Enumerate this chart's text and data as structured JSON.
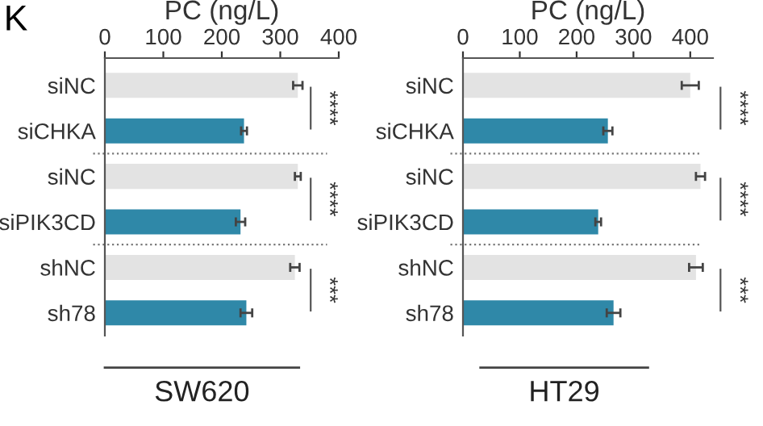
{
  "chart_data": [
    {
      "type": "bar",
      "orientation": "horizontal",
      "title": "K",
      "xlabel": "PC (ng/L)",
      "categories": [
        "siNC",
        "siCHKA",
        "siNC",
        "siPIK3CD",
        "shNC",
        "sh78"
      ],
      "values": [
        330,
        238,
        330,
        232,
        325,
        242
      ],
      "errors": [
        8,
        5,
        5,
        8,
        8,
        10
      ],
      "colors": [
        "#e3e3e3",
        "#2f88a8",
        "#e3e3e3",
        "#2f88a8",
        "#e3e3e3",
        "#2f88a8"
      ],
      "xlim": [
        0,
        400
      ],
      "xticks": [
        0,
        100,
        200,
        300,
        400
      ],
      "grid": false,
      "annotations": [
        "SW620",
        "****",
        "****",
        "***"
      ]
    },
    {
      "type": "bar",
      "orientation": "horizontal",
      "xlabel": "PC (ng/L)",
      "categories": [
        "siNC",
        "siCHKA",
        "siNC",
        "siPIK3CD",
        "shNC",
        "sh78"
      ],
      "values": [
        400,
        255,
        418,
        238,
        410,
        265
      ],
      "errors": [
        15,
        8,
        8,
        5,
        12,
        12
      ],
      "colors": [
        "#e3e3e3",
        "#2f88a8",
        "#e3e3e3",
        "#2f88a8",
        "#e3e3e3",
        "#2f88a8"
      ],
      "xlim": [
        0,
        440
      ],
      "xticks": [
        0,
        100,
        200,
        300,
        400
      ],
      "grid": false,
      "annotations": [
        "HT29",
        "****",
        "****",
        "***"
      ]
    }
  ]
}
